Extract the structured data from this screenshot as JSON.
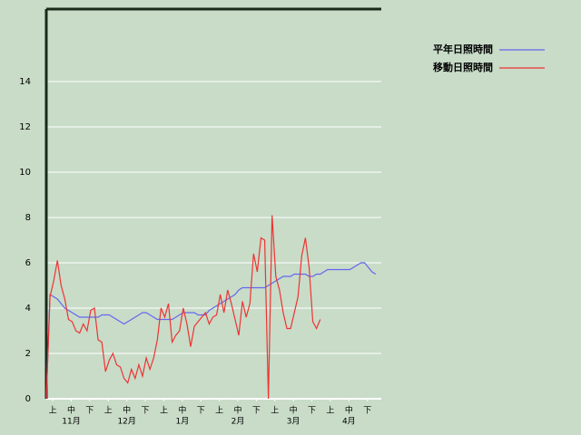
{
  "chart_data": {
    "type": "line",
    "x": [
      0,
      2,
      4,
      6,
      8,
      10,
      12,
      14,
      16,
      18,
      20,
      22,
      24,
      26,
      28,
      30,
      32,
      34,
      36,
      38,
      40,
      42,
      44,
      46,
      48,
      50,
      52,
      54,
      56,
      58,
      60,
      62,
      64,
      66,
      68,
      70,
      72,
      74,
      76,
      78,
      80,
      82,
      84,
      86,
      88,
      90,
      92,
      94,
      96,
      98,
      100,
      102,
      104,
      106,
      108,
      110,
      112,
      114,
      116,
      118,
      120,
      122,
      124,
      126,
      128,
      130,
      132,
      134,
      136,
      138,
      140,
      142,
      144,
      146,
      148,
      150,
      152,
      154,
      156,
      158,
      160,
      162,
      164,
      166,
      168,
      170,
      172,
      174,
      176,
      178
    ],
    "series": [
      {
        "name": "平年日照時間",
        "color": "#6666ee",
        "values": [
          0,
          4.6,
          4.5,
          4.4,
          4.2,
          4.0,
          3.9,
          3.8,
          3.7,
          3.6,
          3.6,
          3.6,
          3.6,
          3.6,
          3.6,
          3.7,
          3.7,
          3.7,
          3.6,
          3.5,
          3.4,
          3.3,
          3.4,
          3.5,
          3.6,
          3.7,
          3.8,
          3.8,
          3.7,
          3.6,
          3.5,
          3.5,
          3.5,
          3.5,
          3.5,
          3.6,
          3.7,
          3.8,
          3.8,
          3.8,
          3.8,
          3.7,
          3.7,
          3.7,
          3.9,
          4.0,
          4.1,
          4.2,
          4.3,
          4.4,
          4.5,
          4.6,
          4.8,
          4.9,
          4.9,
          4.9,
          4.9,
          4.9,
          4.9,
          4.9,
          5.0,
          5.1,
          5.2,
          5.3,
          5.4,
          5.4,
          5.4,
          5.5,
          5.5,
          5.5,
          5.5,
          5.4,
          5.4,
          5.5,
          5.5,
          5.6,
          5.7,
          5.7,
          5.7,
          5.7,
          5.7,
          5.7,
          5.7,
          5.8,
          5.9,
          6.0,
          6.0,
          5.8,
          5.6,
          5.5
        ]
      },
      {
        "name": "移動日照時間",
        "color": "#ee3333",
        "values": [
          0,
          4.5,
          5.2,
          6.1,
          5.0,
          4.4,
          3.5,
          3.4,
          3.0,
          2.9,
          3.3,
          3.0,
          3.9,
          4.0,
          2.6,
          2.5,
          1.2,
          1.7,
          2.0,
          1.5,
          1.4,
          0.9,
          0.7,
          1.3,
          0.9,
          1.5,
          1.0,
          1.8,
          1.3,
          1.8,
          2.6,
          4.0,
          3.6,
          4.2,
          2.5,
          2.8,
          3.0,
          4.0,
          3.3,
          2.3,
          3.2,
          3.4,
          3.6,
          3.8,
          3.3,
          3.6,
          3.7,
          4.6,
          3.8,
          4.8,
          4.2,
          3.5,
          2.8,
          4.3,
          3.6,
          4.2,
          6.4,
          5.6,
          7.1,
          7.0,
          0,
          8.1,
          5.4,
          4.8,
          3.8,
          3.1,
          3.1,
          3.8,
          4.5,
          6.3,
          7.1,
          5.8,
          3.4,
          3.1,
          3.5,
          null,
          null,
          null,
          null,
          null,
          null,
          null,
          null,
          null,
          null,
          null,
          null,
          null,
          null,
          null
        ]
      }
    ],
    "xlim": [
      0,
      181
    ],
    "xticks": [
      {
        "value": 3.5,
        "label": "上"
      },
      {
        "value": 13.5,
        "label": "中"
      },
      {
        "value": 23.5,
        "label": "下"
      },
      {
        "value": 33.5,
        "label": "上"
      },
      {
        "value": 43.5,
        "label": "中"
      },
      {
        "value": 53.5,
        "label": "下"
      },
      {
        "value": 63.5,
        "label": "上"
      },
      {
        "value": 73.5,
        "label": "中"
      },
      {
        "value": 83.5,
        "label": "下"
      },
      {
        "value": 93.5,
        "label": "上"
      },
      {
        "value": 103.5,
        "label": "中"
      },
      {
        "value": 113.5,
        "label": "下"
      },
      {
        "value": 123.5,
        "label": "上"
      },
      {
        "value": 133.5,
        "label": "中"
      },
      {
        "value": 143.5,
        "label": "下"
      },
      {
        "value": 153.5,
        "label": "上"
      },
      {
        "value": 163.5,
        "label": "中"
      },
      {
        "value": 173.5,
        "label": "下"
      }
    ],
    "month_labels": [
      {
        "value": 13.5,
        "label": "11月"
      },
      {
        "value": 43.5,
        "label": "12月"
      },
      {
        "value": 73.5,
        "label": "1月"
      },
      {
        "value": 103.5,
        "label": "2月"
      },
      {
        "value": 133.5,
        "label": "3月"
      },
      {
        "value": 163.5,
        "label": "4月"
      }
    ],
    "ylim": [
      0,
      17.2
    ],
    "yticks": [
      0,
      2,
      4,
      6,
      8,
      10,
      12,
      14
    ],
    "grid": true
  }
}
